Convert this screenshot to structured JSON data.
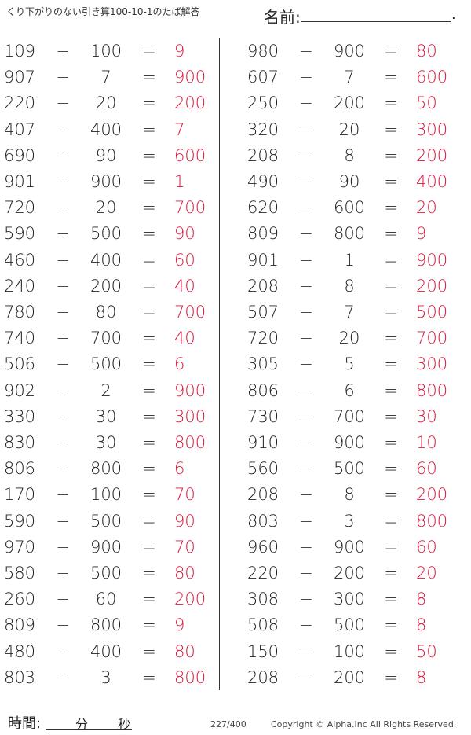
{
  "header": {
    "title": "くり下がりのない引き算100-10-1のたば解答",
    "name_label": "名前:",
    "name_end": "."
  },
  "operator": "−",
  "equals": "=",
  "columns": [
    [
      [
        109,
        100,
        9
      ],
      [
        907,
        7,
        900
      ],
      [
        220,
        20,
        200
      ],
      [
        407,
        400,
        7
      ],
      [
        690,
        90,
        600
      ],
      [
        901,
        900,
        1
      ],
      [
        720,
        20,
        700
      ],
      [
        590,
        500,
        90
      ],
      [
        460,
        400,
        60
      ],
      [
        240,
        200,
        40
      ],
      [
        780,
        80,
        700
      ],
      [
        740,
        700,
        40
      ],
      [
        506,
        500,
        6
      ],
      [
        902,
        2,
        900
      ],
      [
        330,
        30,
        300
      ],
      [
        830,
        30,
        800
      ],
      [
        806,
        800,
        6
      ],
      [
        170,
        100,
        70
      ],
      [
        590,
        500,
        90
      ],
      [
        970,
        900,
        70
      ],
      [
        580,
        500,
        80
      ],
      [
        260,
        60,
        200
      ],
      [
        809,
        800,
        9
      ],
      [
        480,
        400,
        80
      ],
      [
        803,
        3,
        800
      ]
    ],
    [
      [
        980,
        900,
        80
      ],
      [
        607,
        7,
        600
      ],
      [
        250,
        200,
        50
      ],
      [
        320,
        20,
        300
      ],
      [
        208,
        8,
        200
      ],
      [
        490,
        90,
        400
      ],
      [
        620,
        600,
        20
      ],
      [
        809,
        800,
        9
      ],
      [
        901,
        1,
        900
      ],
      [
        208,
        8,
        200
      ],
      [
        507,
        7,
        500
      ],
      [
        720,
        20,
        700
      ],
      [
        305,
        5,
        300
      ],
      [
        806,
        6,
        800
      ],
      [
        730,
        700,
        30
      ],
      [
        910,
        900,
        10
      ],
      [
        560,
        500,
        60
      ],
      [
        208,
        8,
        200
      ],
      [
        803,
        3,
        800
      ],
      [
        960,
        900,
        60
      ],
      [
        220,
        200,
        20
      ],
      [
        308,
        300,
        8
      ],
      [
        508,
        500,
        8
      ],
      [
        150,
        100,
        50
      ],
      [
        208,
        200,
        8
      ]
    ]
  ],
  "footer": {
    "time_label": "時間:",
    "minutes": "分",
    "seconds": "秒",
    "page": "227/400",
    "copyright": "Copyright ©  Alpha.Inc All Rights Reserved."
  }
}
